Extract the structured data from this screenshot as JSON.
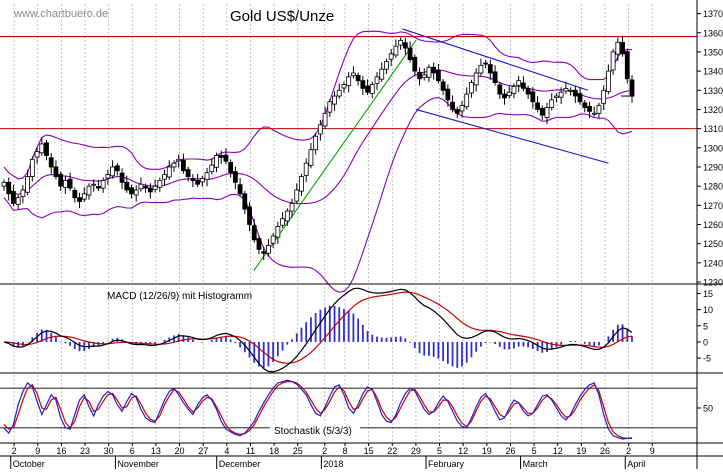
{
  "chart_data": {
    "type": "candlestick",
    "watermark": "www.chartbuero.de",
    "title": "Gold US$/Unze",
    "price_axis": {
      "range": [
        1230,
        1375
      ],
      "ticks": [
        1230,
        1240,
        1250,
        1260,
        1270,
        1280,
        1290,
        1300,
        1310,
        1320,
        1330,
        1340,
        1350,
        1360,
        1370
      ]
    },
    "time_axis": {
      "date_ticks": [
        "2",
        "9",
        "16",
        "23",
        "30",
        "6",
        "13",
        "20",
        "27",
        "4",
        "11",
        "18",
        "25",
        "2",
        "8",
        "15",
        "22",
        "29",
        "5",
        "12",
        "19",
        "26",
        "5",
        "12",
        "19",
        "26",
        "2",
        "9"
      ],
      "month_labels": [
        "October",
        "November",
        "December",
        "2018",
        "February",
        "March",
        "April"
      ]
    },
    "resistance_lines": [
      1358,
      1310
    ],
    "channels": [
      {
        "name": "uptrend",
        "color": "#00aa00",
        "points": [
          [
            "2017-12-12",
            1236
          ],
          [
            "2018-01-29",
            1356
          ]
        ]
      },
      {
        "name": "downtrend-upper",
        "color": "#1818c8",
        "points": [
          [
            "2018-01-25",
            1362
          ],
          [
            "2018-03-21",
            1330
          ]
        ]
      },
      {
        "name": "downtrend-lower",
        "color": "#1818c8",
        "points": [
          [
            "2018-01-29",
            1320
          ],
          [
            "2018-03-27",
            1292
          ]
        ]
      }
    ],
    "closes": [
      1282,
      1276,
      1271,
      1274,
      1278,
      1285,
      1294,
      1298,
      1302,
      1296,
      1290,
      1285,
      1280,
      1283,
      1279,
      1274,
      1272,
      1276,
      1280,
      1281,
      1279,
      1283,
      1286,
      1290,
      1288,
      1282,
      1278,
      1276,
      1278,
      1281,
      1279,
      1277,
      1280,
      1283,
      1286,
      1290,
      1292,
      1294,
      1288,
      1285,
      1283,
      1281,
      1284,
      1287,
      1291,
      1296,
      1295,
      1293,
      1287,
      1282,
      1276,
      1268,
      1260,
      1252,
      1247,
      1245,
      1249,
      1254,
      1259,
      1263,
      1267,
      1271,
      1278,
      1285,
      1292,
      1299,
      1306,
      1312,
      1318,
      1324,
      1327,
      1330,
      1333,
      1337,
      1339,
      1335,
      1331,
      1329,
      1333,
      1337,
      1341,
      1345,
      1349,
      1353,
      1356,
      1352,
      1346,
      1340,
      1336,
      1338,
      1342,
      1339,
      1335,
      1330,
      1325,
      1320,
      1318,
      1322,
      1328,
      1334,
      1339,
      1343,
      1344,
      1339,
      1334,
      1328,
      1326,
      1329,
      1332,
      1335,
      1331,
      1328,
      1324,
      1320,
      1317,
      1321,
      1325,
      1327,
      1329,
      1331,
      1330,
      1327,
      1324,
      1321,
      1319,
      1318,
      1322,
      1330,
      1340,
      1350,
      1355,
      1349,
      1336,
      1327
    ],
    "bollinger": {
      "period": 20,
      "width": 2,
      "color": "#8a00b8"
    },
    "macd": {
      "label": "MACD (12/26/9) mit Histogramm",
      "ticks": [
        -5,
        0,
        5,
        10,
        15
      ],
      "range": [
        -9,
        17
      ]
    },
    "stochastic": {
      "label": "Stochastik (5/3/3)",
      "tick": 50,
      "levels": [
        80,
        20
      ],
      "k": [
        20,
        12,
        25,
        55,
        75,
        88,
        82,
        60,
        40,
        55,
        70,
        62,
        35,
        20,
        18,
        40,
        62,
        70,
        52,
        38,
        55,
        68,
        75,
        70,
        55,
        45,
        60,
        72,
        66,
        48,
        35,
        30,
        28,
        45,
        62,
        75,
        80,
        70,
        58,
        48,
        40,
        55,
        65,
        70,
        62,
        48,
        30,
        18,
        14,
        10,
        8,
        12,
        20,
        30,
        45,
        58,
        70,
        80,
        88,
        90,
        92,
        90,
        86,
        78,
        70,
        55,
        42,
        38,
        52,
        68,
        82,
        85,
        70,
        50,
        42,
        55,
        72,
        82,
        78,
        60,
        40,
        30,
        28,
        40,
        58,
        72,
        80,
        76,
        62,
        48,
        40,
        45,
        58,
        68,
        60,
        45,
        30,
        22,
        20,
        35,
        52,
        66,
        72,
        60,
        45,
        32,
        35,
        50,
        62,
        58,
        45,
        38,
        42,
        55,
        68,
        70,
        62,
        50,
        38,
        32,
        40,
        55,
        68,
        78,
        85,
        88,
        70,
        40,
        18,
        8,
        5,
        3,
        4,
        5
      ],
      "d": [
        25,
        18,
        20,
        40,
        62,
        80,
        85,
        72,
        50,
        48,
        62,
        66,
        48,
        28,
        20,
        30,
        52,
        66,
        60,
        45,
        48,
        60,
        70,
        72,
        62,
        50,
        52,
        65,
        68,
        56,
        42,
        33,
        30,
        38,
        55,
        68,
        78,
        74,
        64,
        52,
        44,
        50,
        60,
        66,
        64,
        52,
        38,
        24,
        16,
        12,
        10,
        11,
        16,
        25,
        38,
        52,
        64,
        75,
        84,
        88,
        90,
        90,
        88,
        82,
        74,
        62,
        50,
        42,
        48,
        60,
        74,
        82,
        76,
        60,
        48,
        50,
        64,
        76,
        78,
        66,
        48,
        36,
        30,
        36,
        50,
        64,
        76,
        78,
        68,
        55,
        44,
        44,
        52,
        62,
        62,
        52,
        38,
        27,
        22,
        30,
        46,
        60,
        68,
        64,
        52,
        40,
        36,
        45,
        56,
        58,
        50,
        42,
        42,
        50,
        62,
        68,
        64,
        55,
        44,
        36,
        38,
        48,
        62,
        72,
        80,
        85,
        76,
        52,
        28,
        14,
        8,
        5,
        4,
        4
      ]
    }
  }
}
